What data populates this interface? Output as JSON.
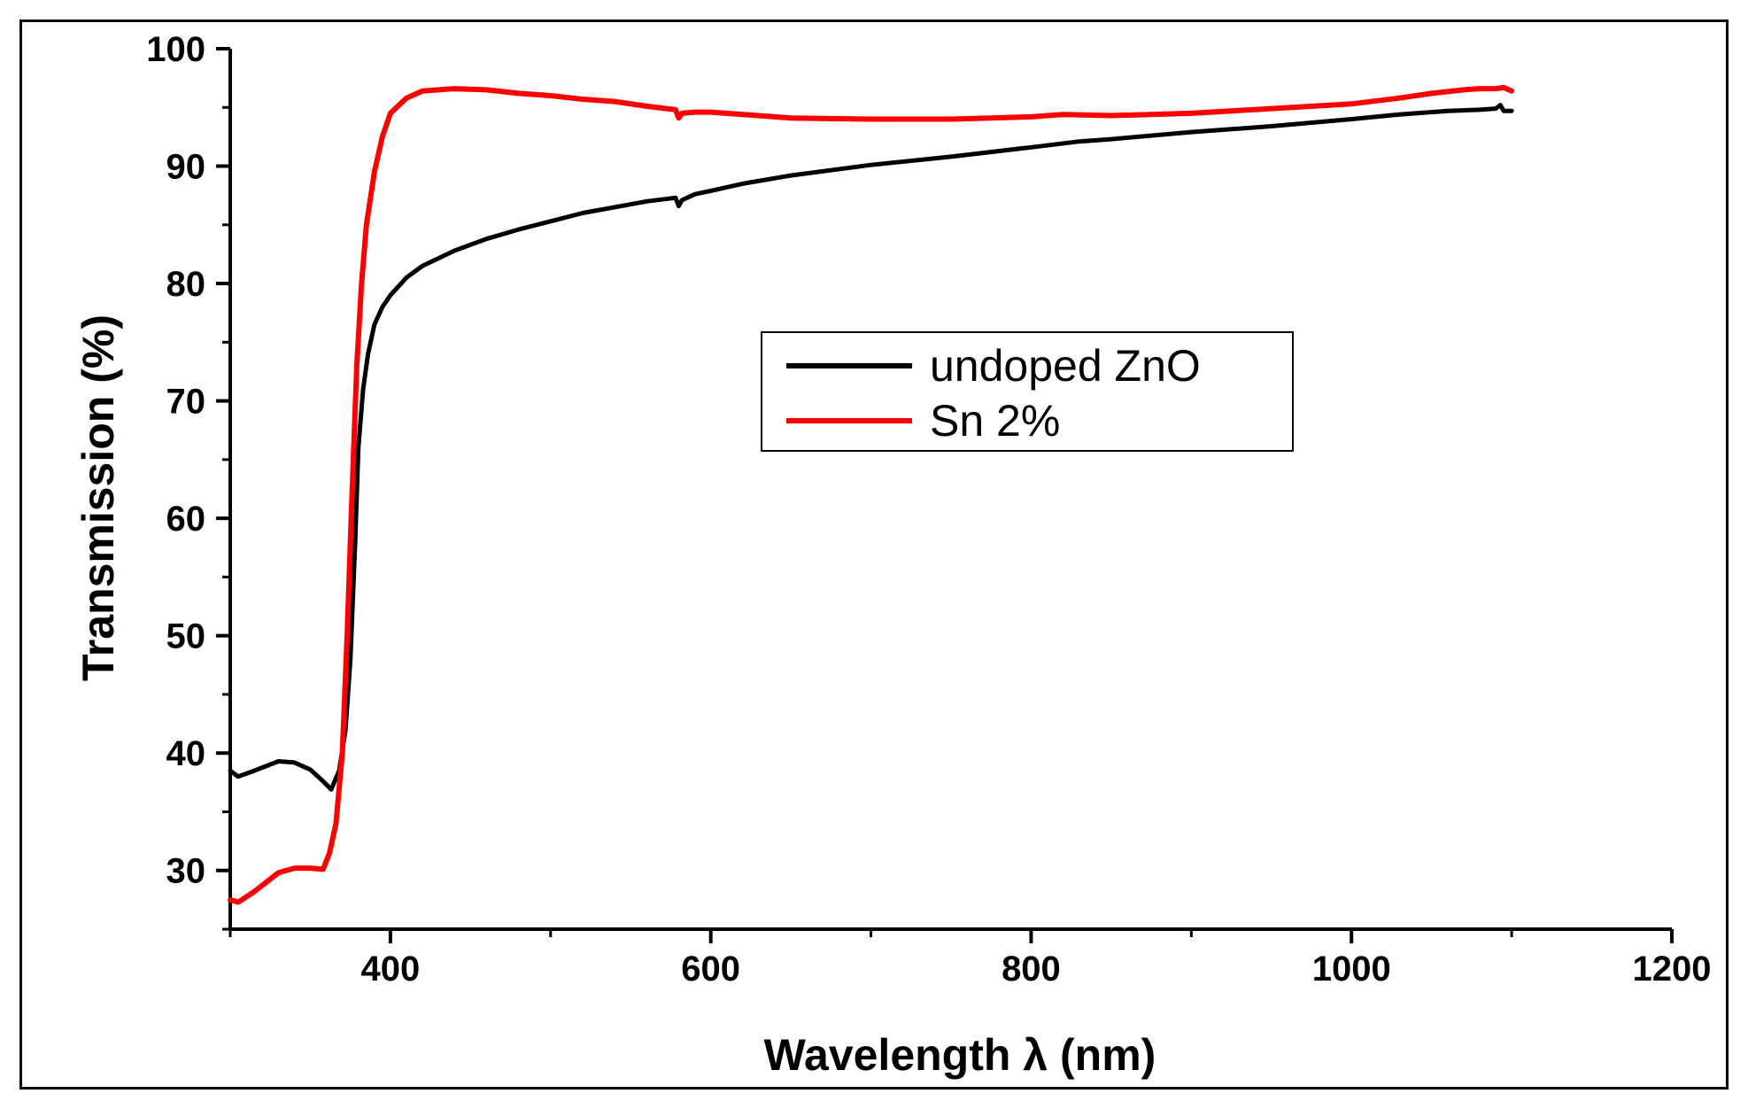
{
  "chart_data": {
    "type": "line",
    "title": "",
    "xlabel": "Wavelength λ (nm)",
    "ylabel": "Transmission (%)",
    "xlim": [
      300,
      1200
    ],
    "ylim": [
      25,
      100
    ],
    "x_ticks": [
      400,
      600,
      800,
      1000,
      1200
    ],
    "y_ticks": [
      30,
      40,
      50,
      60,
      70,
      80,
      90,
      100
    ],
    "grid": false,
    "legend_position": "center-right",
    "series": [
      {
        "name": "undoped ZnO",
        "color": "#000000",
        "x": [
          300,
          305,
          315,
          330,
          340,
          350,
          358,
          363,
          368,
          372,
          375,
          378,
          380,
          383,
          386,
          390,
          395,
          400,
          410,
          420,
          440,
          460,
          480,
          500,
          520,
          540,
          560,
          578,
          580,
          582,
          590,
          600,
          620,
          650,
          700,
          750,
          800,
          830,
          850,
          900,
          950,
          1000,
          1030,
          1060,
          1080,
          1090,
          1093,
          1095,
          1100
        ],
        "y": [
          38.5,
          38.0,
          38.5,
          39.3,
          39.2,
          38.6,
          37.6,
          36.9,
          38.5,
          42,
          48,
          58,
          66,
          71,
          74,
          76.5,
          78,
          79,
          80.5,
          81.5,
          82.8,
          83.8,
          84.6,
          85.3,
          86,
          86.5,
          87,
          87.3,
          86.6,
          87.1,
          87.6,
          87.9,
          88.5,
          89.2,
          90.1,
          90.8,
          91.6,
          92.1,
          92.3,
          92.9,
          93.4,
          94,
          94.4,
          94.7,
          94.8,
          94.9,
          95.2,
          94.7,
          94.7
        ]
      },
      {
        "name": "Sn 2%",
        "color": "#ff0000",
        "x": [
          300,
          305,
          315,
          330,
          340,
          350,
          358,
          362,
          366,
          370,
          373,
          376,
          379,
          382,
          385,
          390,
          395,
          400,
          410,
          420,
          440,
          460,
          480,
          500,
          520,
          540,
          560,
          578,
          580,
          582,
          590,
          600,
          650,
          700,
          750,
          800,
          820,
          850,
          900,
          950,
          1000,
          1030,
          1050,
          1070,
          1080,
          1090,
          1095,
          1100
        ],
        "y": [
          27.5,
          27.3,
          28.2,
          29.8,
          30.2,
          30.2,
          30.1,
          31.5,
          34,
          40,
          50,
          62,
          73,
          80,
          85,
          89.5,
          92.5,
          94.5,
          95.8,
          96.4,
          96.6,
          96.5,
          96.2,
          96,
          95.7,
          95.5,
          95.1,
          94.8,
          94.1,
          94.5,
          94.6,
          94.6,
          94.1,
          94,
          94,
          94.2,
          94.4,
          94.3,
          94.5,
          94.9,
          95.3,
          95.8,
          96.2,
          96.5,
          96.6,
          96.6,
          96.7,
          96.4
        ]
      }
    ]
  }
}
